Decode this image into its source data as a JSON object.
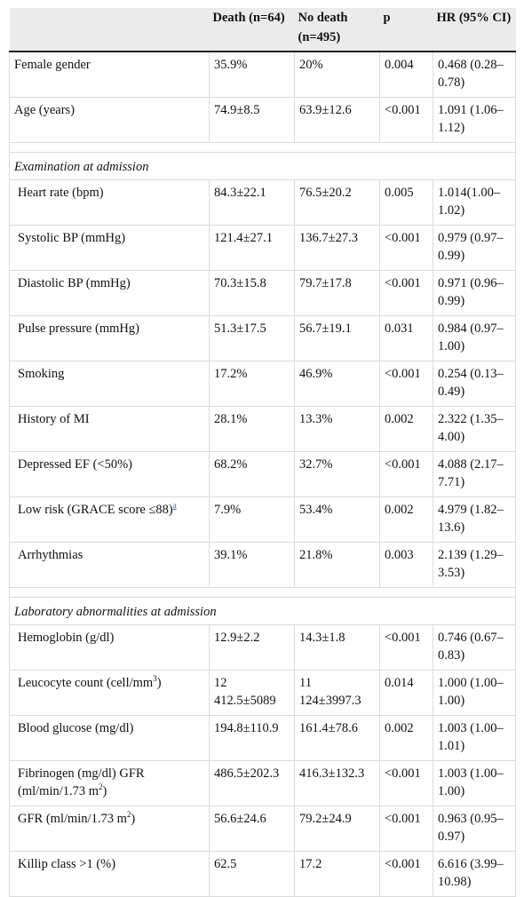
{
  "headers": [
    "",
    "Death (n=64)",
    "No death (n=495)",
    "p",
    "HR (95% CI)"
  ],
  "rows_top": [
    {
      "label": "Female gender",
      "death": "35.9%",
      "nodeath": "20%",
      "p": "0.004",
      "hr": "0.468 (0.28–0.78)"
    },
    {
      "label": "Age (years)",
      "death": "74.9±8.5",
      "nodeath": "63.9±12.6",
      "p": "<0.001",
      "hr": "1.091 (1.06–1.12)"
    }
  ],
  "section_exam": "Examination at admission",
  "rows_exam": [
    {
      "label": "Heart rate (bpm)",
      "death": "84.3±22.1",
      "nodeath": "76.5±20.2",
      "p": "0.005",
      "hr": "1.014(1.00–1.02)"
    },
    {
      "label": "Systolic BP (mmHg)",
      "death": "121.4±27.1",
      "nodeath": "136.7±27.3",
      "p": "<0.001",
      "hr": "0.979 (0.97–0.99)"
    },
    {
      "label": "Diastolic BP (mmHg)",
      "death": "70.3±15.8",
      "nodeath": "79.7±17.8",
      "p": "<0.001",
      "hr": "0.971 (0.96–0.99)"
    },
    {
      "label": "Pulse pressure (mmHg)",
      "death": "51.3±17.5",
      "nodeath": "56.7±19.1",
      "p": "0.031",
      "hr": "0.984 (0.97–1.00)"
    },
    {
      "label": "Smoking",
      "death": "17.2%",
      "nodeath": "46.9%",
      "p": "<0.001",
      "hr": "0.254 (0.13–0.49)"
    },
    {
      "label": "History of MI",
      "death": "28.1%",
      "nodeath": "13.3%",
      "p": "0.002",
      "hr": "2.322 (1.35–4.00)"
    },
    {
      "label": "Depressed EF (<50%)",
      "death": "68.2%",
      "nodeath": "32.7%",
      "p": "<0.001",
      "hr": "4.088 (2.17–7.71)"
    },
    {
      "label": "Low risk (GRACE score ≤88)",
      "footnote": "a",
      "death": "7.9%",
      "nodeath": "53.4%",
      "p": "0.002",
      "hr": "4.979 (1.82–13.6)"
    },
    {
      "label": "Arrhythmias",
      "death": "39.1%",
      "nodeath": "21.8%",
      "p": "0.003",
      "hr": "2.139 (1.29–3.53)"
    }
  ],
  "section_lab": "Laboratory abnormalities at admission",
  "rows_lab": [
    {
      "label": "Hemoglobin (g/dl)",
      "death": "12.9±2.2",
      "nodeath": "14.3±1.8",
      "p": "<0.001",
      "hr": "0.746 (0.67–0.83)"
    },
    {
      "label_pre": "Leucocyte count (cell/mm",
      "label_sup": "3",
      "label_post": ")",
      "death": "12 412.5±5089",
      "nodeath": "11 124±3997.3",
      "p": "0.014",
      "hr": "1.000 (1.00–1.00)"
    },
    {
      "label": "Blood glucose (mg/dl)",
      "death": "194.8±110.9",
      "nodeath": "161.4±78.6",
      "p": "0.002",
      "hr": "1.003 (1.00–1.01)"
    },
    {
      "label_pre": "Fibrinogen (mg/dl) GFR (ml/min/1.73 m",
      "label_sup": "2",
      "label_post": ")",
      "death": "486.5±202.3",
      "nodeath": "416.3±132.3",
      "p": "<0.001",
      "hr": "1.003 (1.00–1.00)"
    },
    {
      "label_pre": "GFR (ml/min/1.73 m",
      "label_sup": "2",
      "label_post": ")",
      "death": "56.6±24.6",
      "nodeath": "79.2±24.9",
      "p": "<0.001",
      "hr": "0.963 (0.95–0.97)"
    },
    {
      "label": "Killip class >1 (%)",
      "death": "62.5",
      "nodeath": "17.2",
      "p": "<0.001",
      "hr": "6.616 (3.99–10.98)"
    }
  ]
}
